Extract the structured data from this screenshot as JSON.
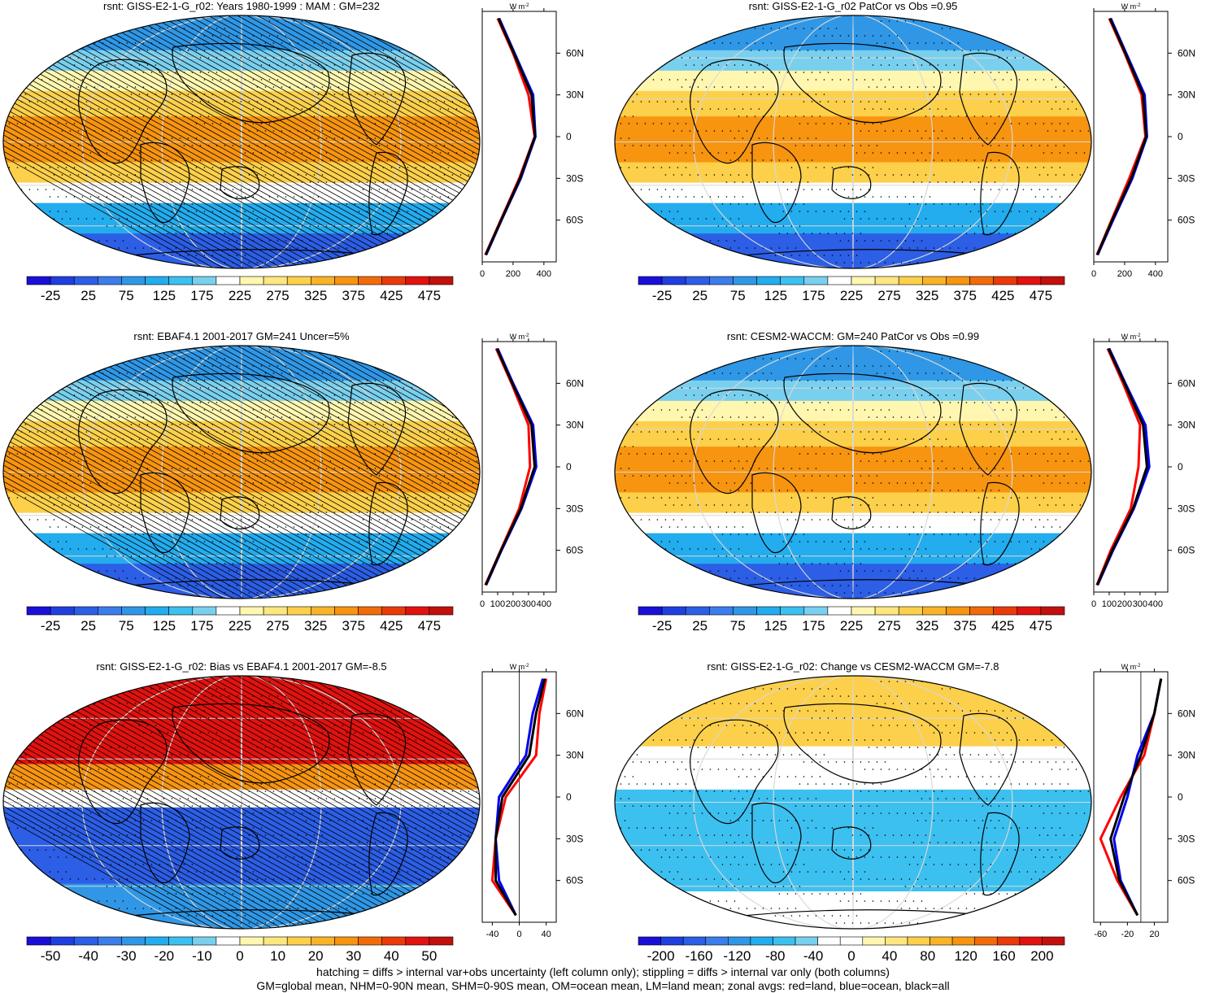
{
  "colors": {
    "abs_scale": [
      "#1a0fd9",
      "#1f3fe0",
      "#2c5ee6",
      "#3b7deb",
      "#2f97e6",
      "#23acee",
      "#3cc0f0",
      "#79d0ee",
      "#ffffff",
      "#fff7b0",
      "#fde680",
      "#fcd04a",
      "#f9b327",
      "#f79410",
      "#f26b0a",
      "#ea3a0a",
      "#e1120f",
      "#c2100d"
    ],
    "diff_scale": [
      "#1a0fd9",
      "#1f3fe0",
      "#2c5ee6",
      "#3b7deb",
      "#2f97e6",
      "#23acee",
      "#3cc0f0",
      "#79d0ee",
      "#ffffff",
      "#ffffff",
      "#fff7b0",
      "#fde680",
      "#fcd04a",
      "#f9b327",
      "#f79410",
      "#f26b0a",
      "#ea3a0a",
      "#e1120f",
      "#c2100d"
    ],
    "land": "#ff0000",
    "ocean": "#0000ee",
    "all": "#000000"
  },
  "zonal_labels": {
    "units": "W m",
    "units_sup": "-2",
    "lat_ticks": [
      "60N",
      "30N",
      "0",
      "30S",
      "60S"
    ]
  },
  "footer": {
    "line1": "hatching = diffs > internal var+obs uncertainty (left column only); stippling = diffs > internal var only (both columns)",
    "line2": "GM=global mean, NHM=0-90N mean, SHM=0-90S mean, OM=ocean mean, LM=land mean; zonal avgs: red=land, blue=ocean, black=all"
  },
  "chart_data": [
    {
      "type": "map",
      "title": "rsnt: GISS-E2-1-G_r02: Years 1980-1999 : MAM : GM=232",
      "colorbar_labels": [
        "-25",
        "25",
        "75",
        "125",
        "175",
        "225",
        "275",
        "325",
        "375",
        "425",
        "475"
      ],
      "zonal": {
        "xticks": [
          "0",
          "200",
          "400"
        ],
        "xlim": [
          0,
          480
        ],
        "lat": [
          85,
          60,
          30,
          0,
          -30,
          -60,
          -85
        ],
        "land": [
          100,
          200,
          300,
          340,
          240,
          120,
          20
        ],
        "ocean": [
          110,
          210,
          330,
          345,
          250,
          125,
          25
        ],
        "all": [
          105,
          205,
          320,
          342,
          245,
          123,
          22
        ]
      }
    },
    {
      "type": "map",
      "title": "rsnt: GISS-E2-1-G_r02 PatCor vs Obs =0.95",
      "colorbar_labels": [
        "-25",
        "25",
        "75",
        "125",
        "175",
        "225",
        "275",
        "325",
        "375",
        "425",
        "475"
      ],
      "zonal": {
        "xticks": [
          "0",
          "200",
          "400"
        ],
        "xlim": [
          0,
          480
        ],
        "lat": [
          85,
          60,
          30,
          0,
          -30,
          -60,
          -85
        ],
        "land": [
          100,
          200,
          310,
          335,
          230,
          115,
          20
        ],
        "ocean": [
          110,
          210,
          330,
          345,
          250,
          125,
          25
        ],
        "all": [
          105,
          205,
          320,
          340,
          243,
          120,
          22
        ]
      }
    },
    {
      "type": "map",
      "title": "rsnt: EBAF4.1 2001-2017 GM=241 Uncer=5%",
      "colorbar_labels": [
        "-25",
        "25",
        "75",
        "125",
        "175",
        "225",
        "275",
        "325",
        "375",
        "425",
        "475"
      ],
      "zonal": {
        "xticks": [
          "0",
          "100",
          "200",
          "300",
          "400"
        ],
        "xlim": [
          0,
          480
        ],
        "lat": [
          85,
          60,
          30,
          0,
          -30,
          -60,
          -85
        ],
        "land": [
          90,
          190,
          300,
          310,
          240,
          120,
          20
        ],
        "ocean": [
          100,
          200,
          330,
          350,
          255,
          125,
          25
        ],
        "all": [
          95,
          195,
          320,
          340,
          250,
          122,
          22
        ]
      }
    },
    {
      "type": "map",
      "title": "rsnt: CESM2-WACCM: GM=240 PatCor vs Obs =0.99",
      "colorbar_labels": [
        "-25",
        "25",
        "75",
        "125",
        "175",
        "225",
        "275",
        "325",
        "375",
        "425",
        "475"
      ],
      "zonal": {
        "xticks": [
          "0",
          "100",
          "200",
          "300",
          "400"
        ],
        "xlim": [
          0,
          480
        ],
        "lat": [
          85,
          60,
          30,
          0,
          -30,
          -60,
          -85
        ],
        "land": [
          90,
          190,
          300,
          290,
          240,
          110,
          20
        ],
        "ocean": [
          100,
          205,
          335,
          360,
          260,
          125,
          25
        ],
        "all": [
          95,
          200,
          320,
          345,
          255,
          120,
          22
        ]
      }
    },
    {
      "type": "map",
      "title": "rsnt: GISS-E2-1-G_r02: Bias vs EBAF4.1 2001-2017 GM=-8.5",
      "colorbar_labels": [
        "-50",
        "-40",
        "-30",
        "-20",
        "-10",
        "0",
        "10",
        "20",
        "30",
        "40",
        "50"
      ],
      "zonal": {
        "xticks": [
          "-40",
          "0",
          "40"
        ],
        "xlim": [
          -55,
          55
        ],
        "lat": [
          85,
          60,
          30,
          0,
          -30,
          -60,
          -85
        ],
        "land": [
          40,
          30,
          25,
          -20,
          -35,
          -40,
          -5
        ],
        "ocean": [
          35,
          20,
          10,
          -30,
          -35,
          -30,
          -5
        ],
        "all": [
          38,
          25,
          15,
          -25,
          -35,
          -35,
          -5
        ]
      }
    },
    {
      "type": "map",
      "title": "rsnt: GISS-E2-1-G_r02: Change vs CESM2-WACCM GM=-7.8",
      "colorbar_labels": [
        "-200",
        "-160",
        "-120",
        "-80",
        "-40",
        "0",
        "40",
        "80",
        "120",
        "160",
        "200"
      ],
      "zonal": {
        "xticks": [
          "-60",
          "-20",
          "20"
        ],
        "xlim": [
          -70,
          40
        ],
        "lat": [
          85,
          60,
          30,
          0,
          -30,
          -60,
          -85
        ],
        "land": [
          30,
          20,
          5,
          -30,
          -60,
          -35,
          -5
        ],
        "ocean": [
          30,
          20,
          -5,
          -20,
          -40,
          -30,
          -5
        ],
        "all": [
          30,
          20,
          0,
          -25,
          -45,
          -32,
          -5
        ]
      }
    }
  ]
}
